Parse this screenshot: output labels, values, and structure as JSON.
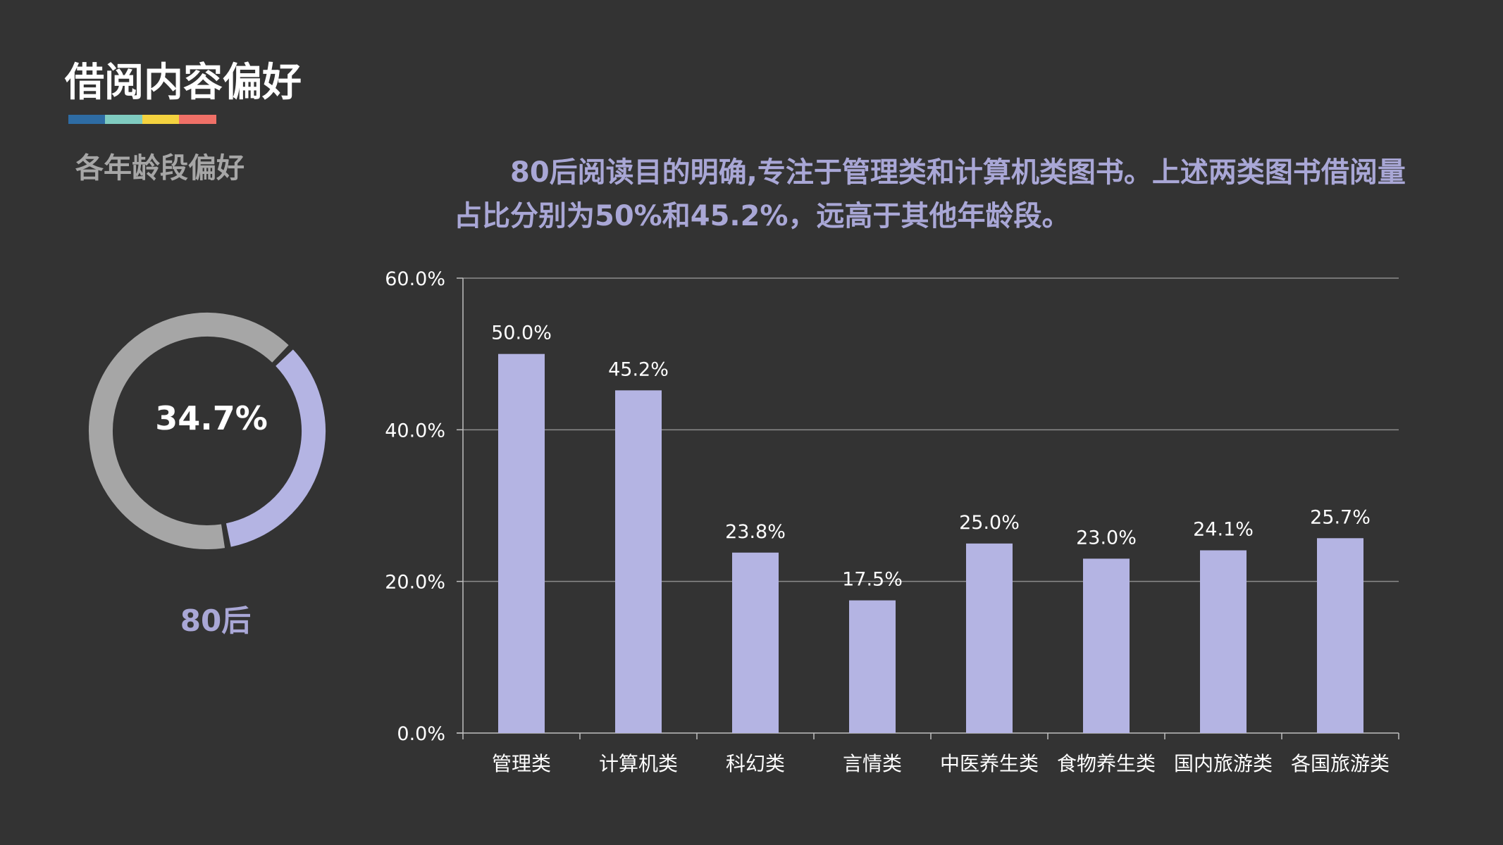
{
  "header": {
    "title": "借阅内容偏好",
    "subtitle": "各年龄段偏好",
    "stripe_colors": [
      "#2e6ca4",
      "#7fcbc0",
      "#f4d23f",
      "#f07067"
    ]
  },
  "description": "80后阅读目的明确,专注于管理类和计算机类图书。上述两类图书借阅量占比分别为50%和45.2%，远高于其他年龄段。",
  "donut": {
    "value_label": "34.7%",
    "value": 0.347,
    "group_label": "80后",
    "highlight_color": "#b4b4e3",
    "rest_color": "#a6a6a6"
  },
  "chart_data": {
    "type": "bar",
    "categories": [
      "管理类",
      "计算机类",
      "科幻类",
      "言情类",
      "中医养生类",
      "食物养生类",
      "国内旅游类",
      "各国旅游类"
    ],
    "values": [
      50.0,
      45.2,
      23.8,
      17.5,
      25.0,
      23.0,
      24.1,
      25.7
    ],
    "data_labels": [
      "50.0%",
      "45.2%",
      "23.8%",
      "17.5%",
      "25.0%",
      "23.0%",
      "24.1%",
      "25.7%"
    ],
    "y_ticks": [
      0,
      20,
      40,
      60
    ],
    "y_tick_labels": [
      "0.0%",
      "20.0%",
      "40.0%",
      "60.0%"
    ],
    "ylim": [
      0,
      60
    ],
    "grid": true,
    "bar_color": "#b4b4e3",
    "title": "",
    "xlabel": "",
    "ylabel": ""
  }
}
